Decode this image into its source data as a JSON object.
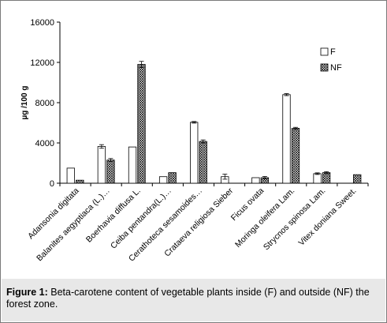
{
  "chart_data": {
    "type": "bar",
    "title": "",
    "xlabel": "",
    "ylabel": "µg /100 g",
    "ylim": [
      0,
      16000
    ],
    "yticks": [
      0,
      4000,
      8000,
      12000,
      16000
    ],
    "ytick_labels": [
      "0",
      "4000",
      "8000",
      "12000",
      "16000"
    ],
    "grid": false,
    "legend_position": "top-right",
    "categories": [
      "Adansonia digitata",
      "Balanites aegyptiaca (L.)…",
      "Boerhavia diffusa L.",
      "Ceiba pentandra(L.)…",
      "Cerathoteca sesamoides…",
      "Crataeva religiosa Sieber",
      "Ficus ovata",
      "Moringa oleifera Lam.",
      "Strycnos spinosa Lam.",
      "Vitex doniana Sweet."
    ],
    "series": [
      {
        "name": "F",
        "fill": "white",
        "values": [
          1500,
          3650,
          3600,
          650,
          6050,
          650,
          550,
          8800,
          950,
          0
        ],
        "errors": [
          0,
          180,
          0,
          0,
          80,
          250,
          0,
          100,
          80,
          0
        ]
      },
      {
        "name": "NF",
        "fill": "crosshatch",
        "values": [
          300,
          2300,
          11800,
          1050,
          4150,
          0,
          550,
          5450,
          1050,
          850
        ],
        "errors": [
          0,
          150,
          300,
          0,
          150,
          0,
          120,
          100,
          100,
          0
        ]
      }
    ]
  },
  "caption": {
    "label": "Figure 1:",
    "text": " Beta-carotene content of vegetable plants inside (F) and outside (NF) the forest zone."
  }
}
